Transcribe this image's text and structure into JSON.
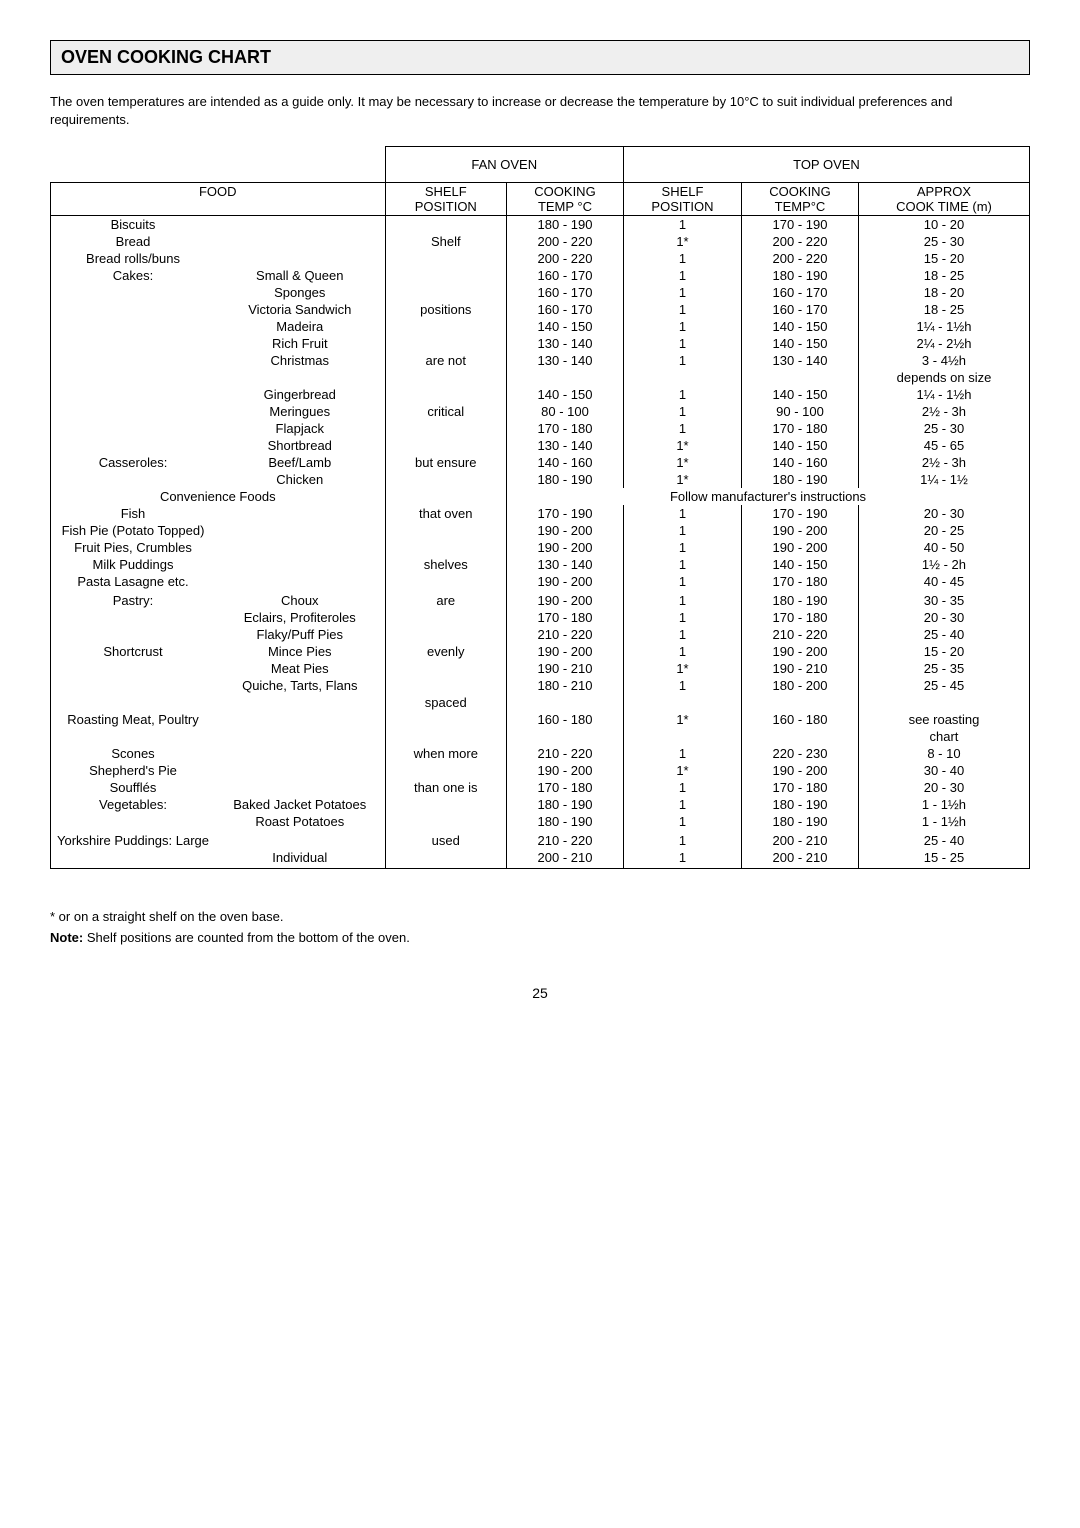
{
  "title": "OVEN COOKING CHART",
  "intro": "The oven temperatures are intended as a guide only.  It may be necessary to increase or decrease the temperature by 10°C to suit individual preferences and requirements.",
  "headers": {
    "fan_oven": "FAN OVEN",
    "top_oven": "TOP OVEN",
    "food": "FOOD",
    "shelf_position": "SHELF POSITION",
    "cooking_temp_c": "COOKING TEMP °C",
    "cooking_tempc": "COOKING TEMP°C",
    "approx_cooktime": "APPROX COOK TIME (m)"
  },
  "fan_position_words": [
    "Shelf",
    "positions",
    "are not",
    "critical",
    "but ensure",
    "that oven",
    "shelves",
    "are",
    "evenly",
    "spaced",
    "when more",
    "than one is",
    "used"
  ],
  "rows": [
    {
      "food": "Biscuits",
      "variant": "",
      "fan_temp": "180 - 190",
      "top_pos": "1",
      "top_temp": "170 - 190",
      "time": "10 - 20"
    },
    {
      "food": "Bread",
      "variant": "",
      "fan_temp": "200 - 220",
      "top_pos": "1*",
      "top_temp": "200 - 220",
      "time": "25 - 30"
    },
    {
      "food": "Bread rolls/buns",
      "variant": "",
      "fan_temp": "200 - 220",
      "top_pos": "1",
      "top_temp": "200 - 220",
      "time": "15 - 20"
    },
    {
      "food": "Cakes:",
      "variant": "Small & Queen",
      "fan_temp": "160 - 170",
      "top_pos": "1",
      "top_temp": "180 - 190",
      "time": "18 - 25"
    },
    {
      "food": "",
      "variant": "Sponges",
      "fan_temp": "160 - 170",
      "top_pos": "1",
      "top_temp": "160 - 170",
      "time": "18 - 20"
    },
    {
      "food": "",
      "variant": "Victoria Sandwich",
      "fan_temp": "160 - 170",
      "top_pos": "1",
      "top_temp": "160 - 170",
      "time": "18 - 25"
    },
    {
      "food": "",
      "variant": "Madeira",
      "fan_temp": "140 - 150",
      "top_pos": "1",
      "top_temp": "140 - 150",
      "time": "1¼ - 1½h"
    },
    {
      "food": "",
      "variant": "Rich Fruit",
      "fan_temp": "130 - 140",
      "top_pos": "1",
      "top_temp": "140 - 150",
      "time": "2¼ - 2½h"
    },
    {
      "food": "",
      "variant": "Christmas",
      "fan_temp": "130 - 140",
      "top_pos": "1",
      "top_temp": "130 - 140",
      "time": "3 - 4½h"
    },
    {
      "food": "",
      "variant": "",
      "fan_temp": "",
      "top_pos": "",
      "top_temp": "",
      "time": "depends on size"
    },
    {
      "food": "",
      "variant": "Gingerbread",
      "fan_temp": "140 - 150",
      "top_pos": "1",
      "top_temp": "140 - 150",
      "time": "1¼ - 1½h"
    },
    {
      "food": "",
      "variant": "Meringues",
      "fan_temp": "80 - 100",
      "top_pos": "1",
      "top_temp": "90 - 100",
      "time": "2½ - 3h"
    },
    {
      "food": "",
      "variant": "Flapjack",
      "fan_temp": "170 - 180",
      "top_pos": "1",
      "top_temp": "170 - 180",
      "time": "25 - 30"
    },
    {
      "food": "",
      "variant": "Shortbread",
      "fan_temp": "130 - 140",
      "top_pos": "1*",
      "top_temp": "140 - 150",
      "time": "45 - 65"
    },
    {
      "food": "Casseroles:",
      "variant": "Beef/Lamb",
      "fan_temp": "140 - 160",
      "top_pos": "1*",
      "top_temp": "140 - 160",
      "time": "2½ - 3h"
    },
    {
      "food": "",
      "variant": "Chicken",
      "fan_temp": "180 - 190",
      "top_pos": "1*",
      "top_temp": "180 - 190",
      "time": "1¼ - 1½"
    },
    {
      "food": "Convenience Foods",
      "variant": "",
      "fan_temp": "",
      "top_pos": "",
      "top_temp": "",
      "time": "",
      "span_text": "Follow manufacturer's instructions"
    },
    {
      "food": "Fish",
      "variant": "",
      "fan_temp": "170 - 190",
      "top_pos": "1",
      "top_temp": "170 - 190",
      "time": "20 - 30"
    },
    {
      "food": "Fish Pie (Potato Topped)",
      "variant": "",
      "fan_temp": "190 - 200",
      "top_pos": "1",
      "top_temp": "190 - 200",
      "time": "20 - 25"
    },
    {
      "food": "Fruit Pies, Crumbles",
      "variant": "",
      "fan_temp": "190 - 200",
      "top_pos": "1",
      "top_temp": "190 - 200",
      "time": "40 - 50"
    },
    {
      "food": "Milk Puddings",
      "variant": "",
      "fan_temp": "130 - 140",
      "top_pos": "1",
      "top_temp": "140 - 150",
      "time": "1½ - 2h"
    },
    {
      "food": "Pasta Lasagne etc.",
      "variant": "",
      "fan_temp": "190 - 200",
      "top_pos": "1",
      "top_temp": "170 - 180",
      "time": "40 - 45"
    },
    {
      "food": "",
      "variant": "",
      "fan_temp": "",
      "top_pos": "",
      "top_temp": "",
      "time": ""
    },
    {
      "food": "Pastry:",
      "variant": "Choux",
      "fan_temp": "190 - 200",
      "top_pos": "1",
      "top_temp": "180 - 190",
      "time": "30 - 35"
    },
    {
      "food": "",
      "variant": "Eclairs, Profiteroles",
      "fan_temp": "170 - 180",
      "top_pos": "1",
      "top_temp": "170 - 180",
      "time": "20 - 30"
    },
    {
      "food": "",
      "variant": "Flaky/Puff Pies",
      "fan_temp": "210 - 220",
      "top_pos": "1",
      "top_temp": "210 - 220",
      "time": "25 - 40"
    },
    {
      "food": "Shortcrust",
      "variant": "Mince Pies",
      "fan_temp": "190 - 200",
      "top_pos": "1",
      "top_temp": "190 - 200",
      "time": "15 - 20"
    },
    {
      "food": "",
      "variant": "Meat Pies",
      "fan_temp": "190 - 210",
      "top_pos": "1*",
      "top_temp": "190 - 210",
      "time": "25 - 35"
    },
    {
      "food": "",
      "variant": "Quiche, Tarts, Flans",
      "fan_temp": "180 - 210",
      "top_pos": "1",
      "top_temp": "180 - 200",
      "time": "25 - 45"
    },
    {
      "food": "",
      "variant": "",
      "fan_temp": "",
      "top_pos": "",
      "top_temp": "",
      "time": ""
    },
    {
      "food": "Roasting Meat, Poultry",
      "variant": "",
      "fan_temp": "160 - 180",
      "top_pos": "1*",
      "top_temp": "160 - 180",
      "time": "see roasting"
    },
    {
      "food": "",
      "variant": "",
      "fan_temp": "",
      "top_pos": "",
      "top_temp": "",
      "time": "chart"
    },
    {
      "food": "Scones",
      "variant": "",
      "fan_temp": "210 - 220",
      "top_pos": "1",
      "top_temp": "220 - 230",
      "time": "8 - 10"
    },
    {
      "food": "Shepherd's Pie",
      "variant": "",
      "fan_temp": "190 - 200",
      "top_pos": "1*",
      "top_temp": "190 - 200",
      "time": "30 - 40"
    },
    {
      "food": "Soufflés",
      "variant": "",
      "fan_temp": "170 - 180",
      "top_pos": "1",
      "top_temp": "170 - 180",
      "time": "20 - 30"
    },
    {
      "food": "Vegetables:",
      "variant": "Baked Jacket Potatoes",
      "fan_temp": "180 - 190",
      "top_pos": "1",
      "top_temp": "180 - 190",
      "time": "1 - 1½h"
    },
    {
      "food": "",
      "variant": "Roast Potatoes",
      "fan_temp": "180 - 190",
      "top_pos": "1",
      "top_temp": "180 - 190",
      "time": "1 - 1½h"
    },
    {
      "food": "",
      "variant": "",
      "fan_temp": "",
      "top_pos": "",
      "top_temp": "",
      "time": ""
    },
    {
      "food": "Yorkshire Puddings:  Large",
      "variant": "",
      "fan_temp": "210 - 220",
      "top_pos": "1",
      "top_temp": "200 - 210",
      "time": "25 - 40"
    },
    {
      "food": "",
      "variant": "Individual",
      "fan_temp": "200 - 210",
      "top_pos": "1",
      "top_temp": "200 - 210",
      "time": "15 - 25"
    },
    {
      "food": "",
      "variant": "",
      "fan_temp": "",
      "top_pos": "",
      "top_temp": "",
      "time": ""
    }
  ],
  "fan_word_row_map": {
    "1": 0,
    "5": 1,
    "8": 2,
    "11": 3,
    "14": 4,
    "17": 5,
    "20": 6,
    "23": 7,
    "26": 8,
    "29": 9,
    "32": 10,
    "34": 11,
    "38": 12
  },
  "footnote1": "* or on a straight shelf on the oven base.",
  "footnote2_label": "Note:",
  "footnote2_text": " Shelf positions are counted from the bottom of the oven.",
  "page_number": "25"
}
